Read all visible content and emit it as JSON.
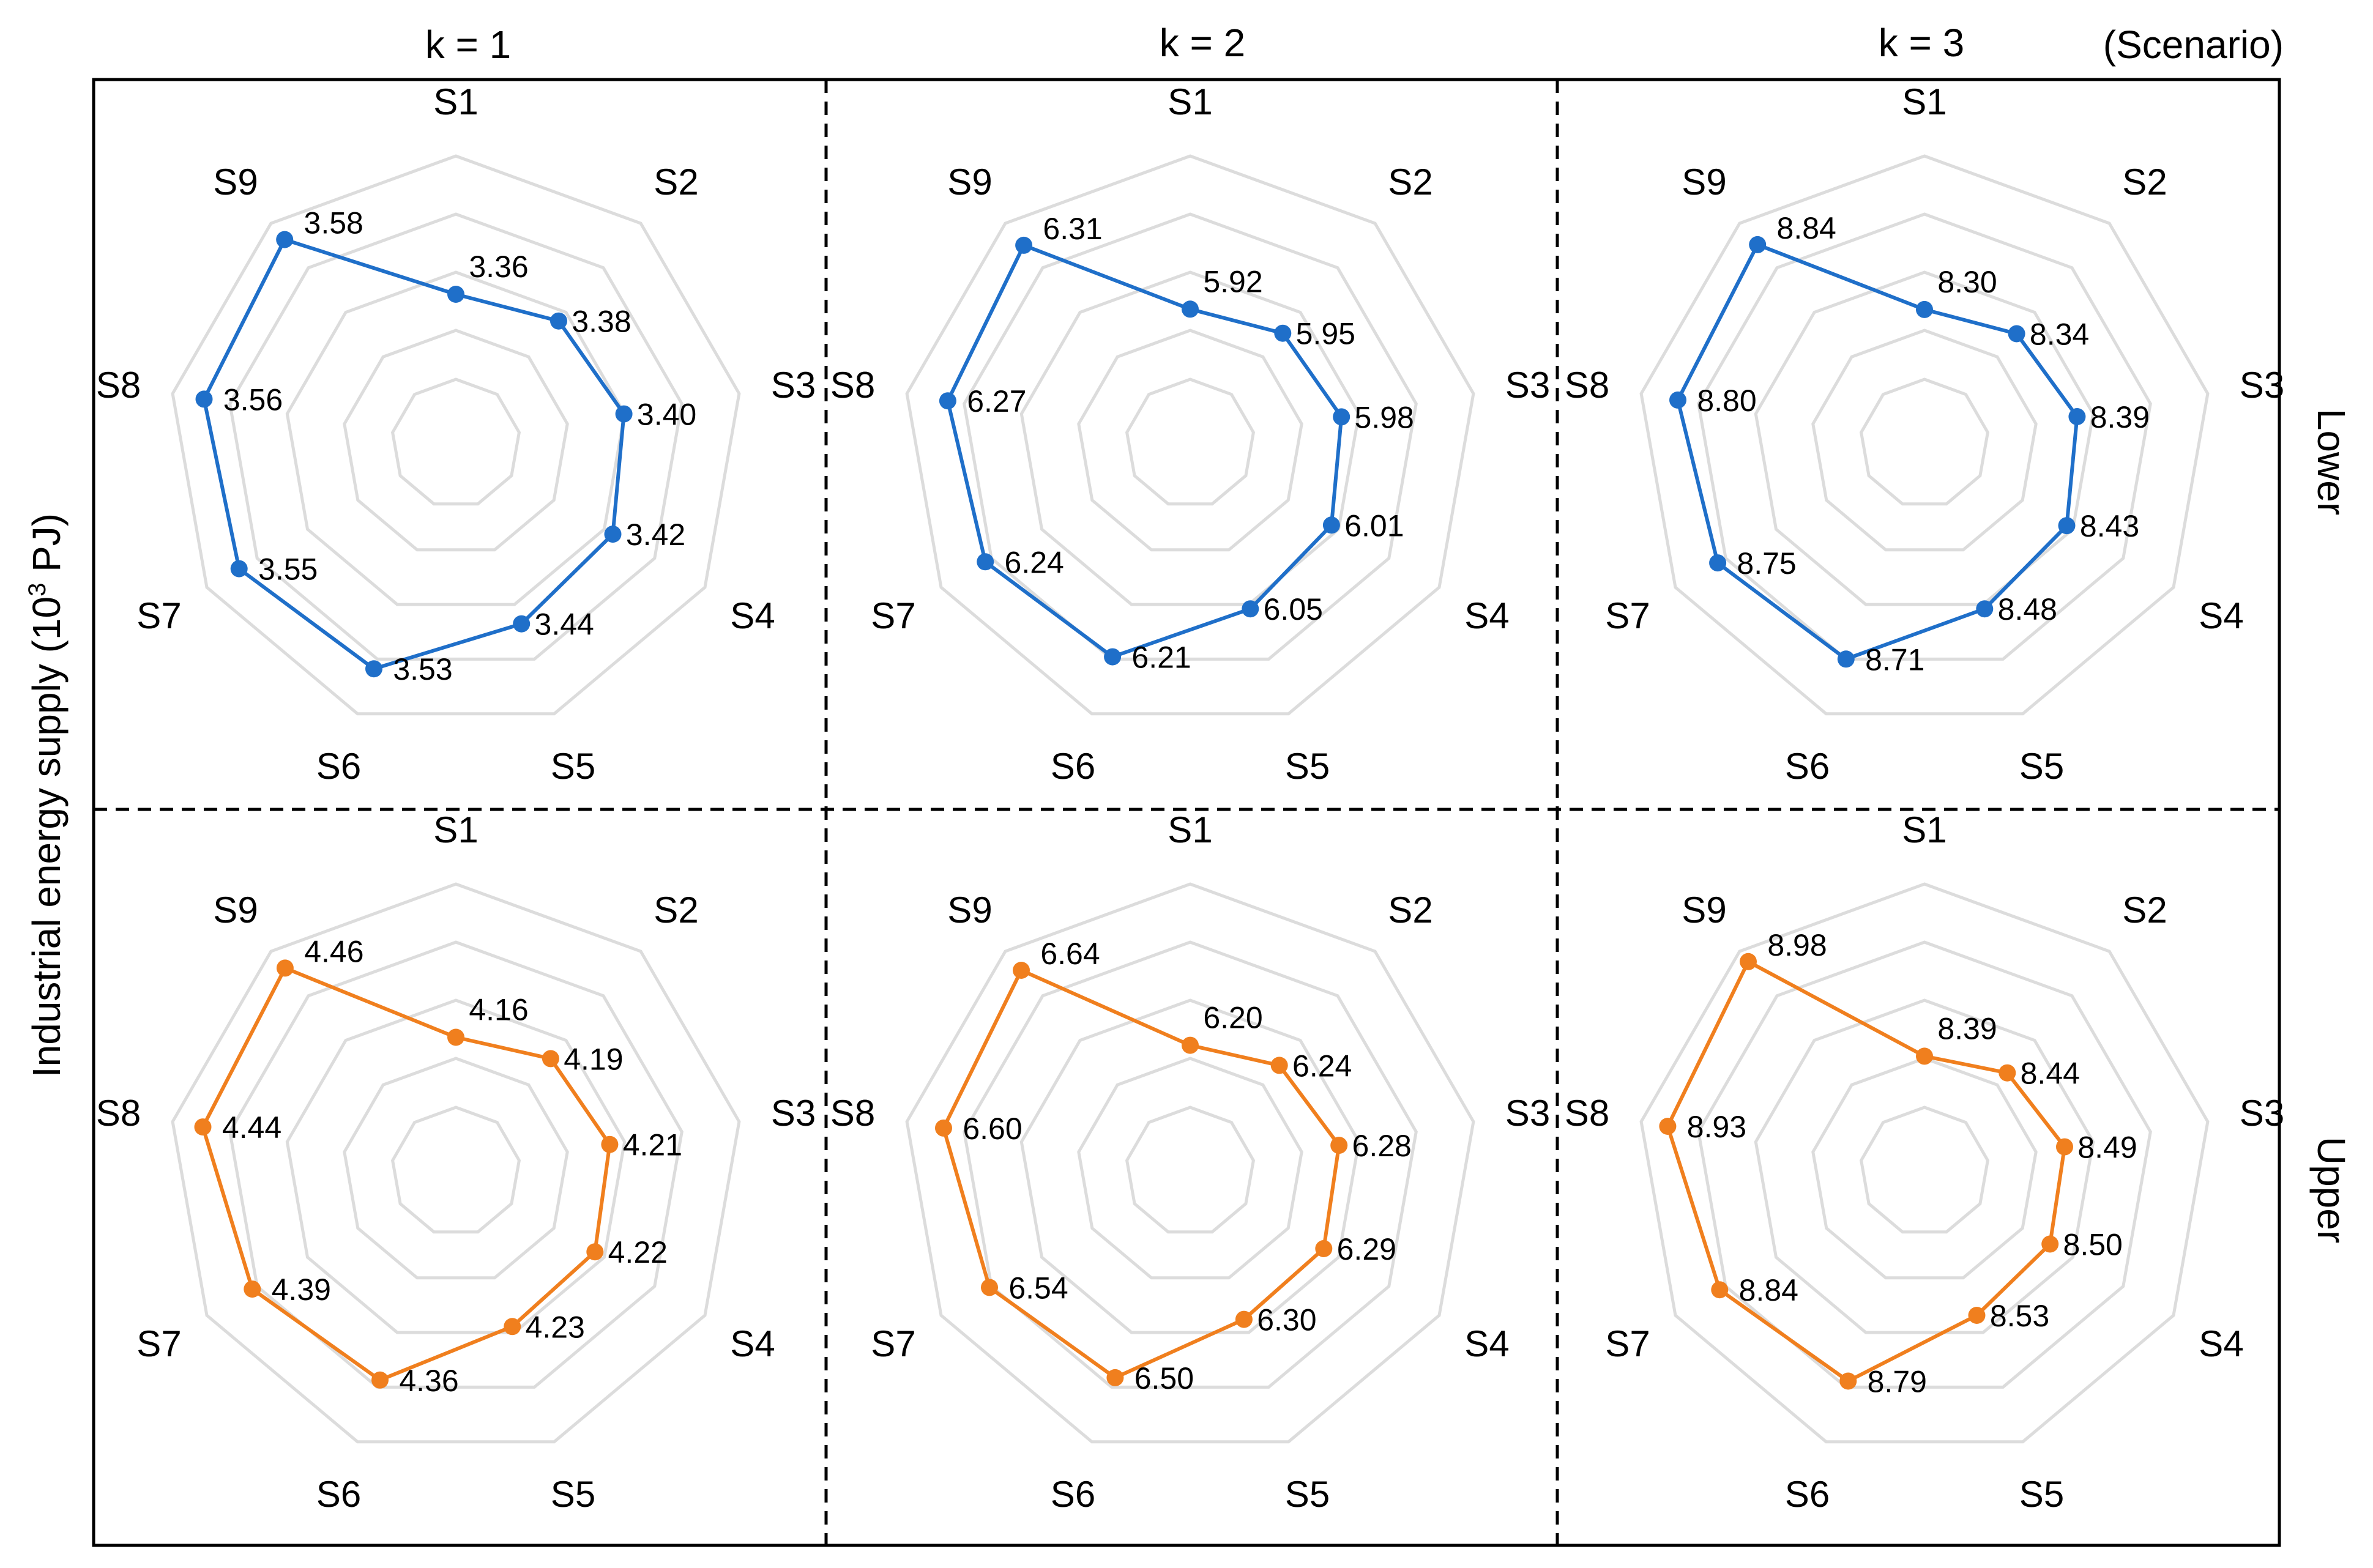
{
  "figure": {
    "column_headers": [
      "k = 1",
      "k = 2",
      "k = 3"
    ],
    "column_header_note": "(Scenario)",
    "row_labels": [
      "Lower",
      "Upper"
    ],
    "ylabel_prefix": "Industrial energy supply (10",
    "ylabel_sup": "3",
    "ylabel_suffix": " PJ)"
  },
  "chart_data": [
    {
      "type": "radar",
      "panel": "k = 1 / Lower",
      "categories": [
        "S1",
        "S2",
        "S3",
        "S4",
        "S5",
        "S6",
        "S7",
        "S8",
        "S9"
      ],
      "series": [
        {
          "values": [
            3.36,
            3.38,
            3.4,
            3.42,
            3.44,
            3.53,
            3.55,
            3.56,
            3.58
          ]
        }
      ],
      "radial_range": [
        3.2,
        3.62
      ],
      "color": "#1f6fc9"
    },
    {
      "type": "radar",
      "panel": "k = 2 / Lower",
      "categories": [
        "S1",
        "S2",
        "S3",
        "S4",
        "S5",
        "S6",
        "S7",
        "S8",
        "S9"
      ],
      "series": [
        {
          "values": [
            5.92,
            5.95,
            5.98,
            6.01,
            6.05,
            6.21,
            6.24,
            6.27,
            6.31
          ]
        }
      ],
      "radial_range": [
        5.7,
        6.4
      ],
      "color": "#1f6fc9"
    },
    {
      "type": "radar",
      "panel": "k = 3 / Lower",
      "categories": [
        "S1",
        "S2",
        "S3",
        "S4",
        "S5",
        "S6",
        "S7",
        "S8",
        "S9"
      ],
      "series": [
        {
          "values": [
            8.3,
            8.34,
            8.39,
            8.43,
            8.48,
            8.71,
            8.75,
            8.8,
            8.84
          ]
        }
      ],
      "radial_range": [
        8.0,
        8.96
      ],
      "color": "#1f6fc9"
    },
    {
      "type": "radar",
      "panel": "k = 1 / Upper",
      "categories": [
        "S1",
        "S2",
        "S3",
        "S4",
        "S5",
        "S6",
        "S7",
        "S8",
        "S9"
      ],
      "series": [
        {
          "values": [
            4.16,
            4.19,
            4.21,
            4.22,
            4.23,
            4.36,
            4.39,
            4.44,
            4.46
          ]
        }
      ],
      "radial_range": [
        4.0,
        4.51
      ],
      "color": "#f07f1e"
    },
    {
      "type": "radar",
      "panel": "k = 2 / Upper",
      "categories": [
        "S1",
        "S2",
        "S3",
        "S4",
        "S5",
        "S6",
        "S7",
        "S8",
        "S9"
      ],
      "series": [
        {
          "values": [
            6.2,
            6.24,
            6.28,
            6.29,
            6.3,
            6.5,
            6.54,
            6.6,
            6.64
          ]
        }
      ],
      "radial_range": [
        6.0,
        6.72
      ],
      "color": "#f07f1e"
    },
    {
      "type": "radar",
      "panel": "k = 3 / Upper",
      "categories": [
        "S1",
        "S2",
        "S3",
        "S4",
        "S5",
        "S6",
        "S7",
        "S8",
        "S9"
      ],
      "series": [
        {
          "values": [
            8.39,
            8.44,
            8.49,
            8.5,
            8.53,
            8.79,
            8.84,
            8.93,
            8.98
          ]
        }
      ],
      "radial_range": [
        8.2,
        9.03
      ],
      "color": "#f07f1e"
    }
  ]
}
